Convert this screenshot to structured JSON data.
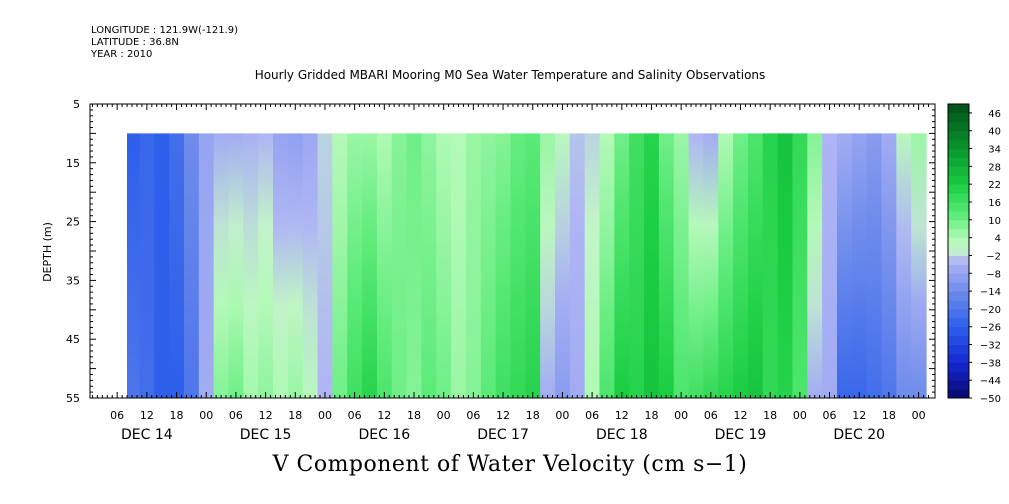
{
  "header": {
    "longitude": "LONGITUDE : 121.9W(-121.9)",
    "latitude": "LATITUDE : 36.8N",
    "year": "YEAR : 2010"
  },
  "chart_data": {
    "type": "heatmap",
    "title": "Hourly Gridded MBARI Mooring M0 Sea Water Temperature and Salinity Observations",
    "xlabel": "V Component of Water Velocity (cm s−1)",
    "ylabel": "DEPTH (m)",
    "y_ticks": [
      "5",
      "15",
      "25",
      "35",
      "45",
      "55"
    ],
    "ylim": [
      55,
      5
    ],
    "hour_ticks": [
      "06",
      "12",
      "18",
      "00",
      "06",
      "12",
      "18",
      "00",
      "06",
      "12",
      "18",
      "00",
      "06",
      "12",
      "18",
      "00",
      "06",
      "12",
      "18",
      "00",
      "06",
      "12",
      "18",
      "00",
      "06",
      "12",
      "18",
      "00"
    ],
    "day_labels": [
      "DEC 14",
      "DEC 15",
      "DEC 16",
      "DEC 17",
      "DEC 18",
      "DEC 19",
      "DEC 20"
    ],
    "data_depth_range_m": [
      10,
      55
    ],
    "colorbar": {
      "labels": [
        "46",
        "40",
        "34",
        "28",
        "22",
        "16",
        "10",
        "4",
        "−2",
        "−8",
        "−14",
        "−20",
        "−26",
        "−32",
        "−38",
        "−44",
        "−50"
      ],
      "min": -50,
      "max": 49,
      "step": 3
    },
    "column_profiles": {
      "step_hours": 3,
      "hours_from_dec14_00": [
        3,
        6,
        9,
        12,
        15,
        18,
        21,
        24,
        27,
        30,
        33,
        36,
        39,
        42,
        45,
        48,
        51,
        54,
        57,
        60,
        63,
        66,
        69,
        72,
        75,
        78,
        81,
        84,
        87,
        90,
        93,
        96,
        99,
        102,
        105,
        108,
        111,
        114,
        117,
        120,
        123,
        126,
        129,
        132,
        135,
        138,
        141,
        144,
        147,
        150,
        153,
        156,
        159,
        162,
        165,
        168
      ],
      "top_cm_s": [
        -24,
        -24,
        -26,
        -24,
        -26,
        -22,
        -14,
        -8,
        -6,
        -6,
        -5,
        -4,
        -8,
        -9,
        -7,
        -2,
        3,
        6,
        6,
        4,
        8,
        10,
        7,
        4,
        3,
        6,
        7,
        8,
        11,
        12,
        6,
        2,
        -3,
        -2,
        3,
        10,
        16,
        20,
        10,
        6,
        -4,
        -6,
        4,
        10,
        14,
        20,
        24,
        18,
        8,
        -4,
        -6,
        -8,
        -10,
        -6,
        2,
        6
      ],
      "bottom_cm_s": [
        -16,
        -14,
        -20,
        -22,
        -26,
        -26,
        -20,
        -6,
        8,
        10,
        5,
        7,
        4,
        6,
        2,
        -4,
        10,
        16,
        20,
        14,
        10,
        8,
        12,
        10,
        6,
        8,
        12,
        16,
        18,
        20,
        -6,
        -10,
        -6,
        4,
        14,
        22,
        20,
        24,
        22,
        14,
        16,
        18,
        20,
        22,
        24,
        18,
        20,
        14,
        -6,
        -6,
        -24,
        -24,
        -22,
        -20,
        -14,
        -14
      ]
    }
  }
}
